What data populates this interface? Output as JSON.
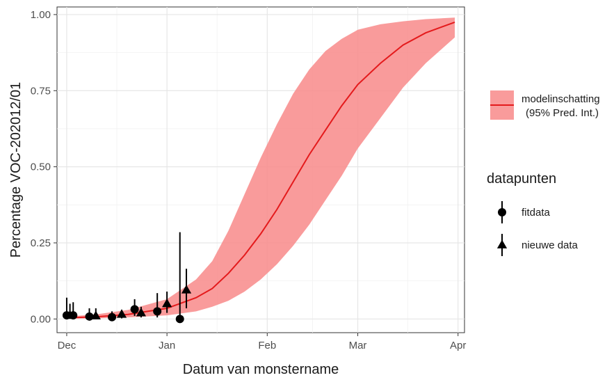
{
  "chart_data": {
    "type": "line",
    "xlabel": "Datum van monstername",
    "ylabel": "Percentage VOC-202012/01",
    "x_axis": {
      "type": "date",
      "range": [
        "2020-11-28",
        "2021-04-03"
      ],
      "ticks": [
        {
          "date": "2020-12-01",
          "label": "Dec"
        },
        {
          "date": "2021-01-01",
          "label": "Jan"
        },
        {
          "date": "2021-02-01",
          "label": "Feb"
        },
        {
          "date": "2021-03-01",
          "label": "Mar"
        },
        {
          "date": "2021-04-01",
          "label": "Apr"
        }
      ]
    },
    "y_axis": {
      "range": [
        -0.045,
        1.025
      ],
      "ticks": [
        0,
        0.25,
        0.5,
        0.75,
        1
      ],
      "tick_labels": [
        "0.00",
        "0.25",
        "0.50",
        "0.75",
        "1.00"
      ]
    },
    "grid": true,
    "model": {
      "label_line1": "modelinschatting",
      "label_line2": "(95% Pred. Int.)",
      "line_color": "#e41a1c",
      "band_color": "#f88a8a",
      "points": [
        {
          "x": "2020-12-01",
          "y": 0.004,
          "lo": 0.001,
          "hi": 0.008
        },
        {
          "x": "2020-12-10",
          "y": 0.007,
          "lo": 0.002,
          "hi": 0.015
        },
        {
          "x": "2020-12-20",
          "y": 0.015,
          "lo": 0.005,
          "hi": 0.03
        },
        {
          "x": "2021-01-01",
          "y": 0.035,
          "lo": 0.012,
          "hi": 0.065
        },
        {
          "x": "2021-01-10",
          "y": 0.07,
          "lo": 0.025,
          "hi": 0.13
        },
        {
          "x": "2021-01-15",
          "y": 0.1,
          "lo": 0.04,
          "hi": 0.19
        },
        {
          "x": "2021-01-20",
          "y": 0.15,
          "lo": 0.06,
          "hi": 0.29
        },
        {
          "x": "2021-01-25",
          "y": 0.21,
          "lo": 0.09,
          "hi": 0.41
        },
        {
          "x": "2021-01-30",
          "y": 0.28,
          "lo": 0.13,
          "hi": 0.53
        },
        {
          "x": "2021-02-04",
          "y": 0.36,
          "lo": 0.18,
          "hi": 0.64
        },
        {
          "x": "2021-02-09",
          "y": 0.45,
          "lo": 0.24,
          "hi": 0.74
        },
        {
          "x": "2021-02-14",
          "y": 0.54,
          "lo": 0.31,
          "hi": 0.82
        },
        {
          "x": "2021-02-19",
          "y": 0.62,
          "lo": 0.39,
          "hi": 0.88
        },
        {
          "x": "2021-02-24",
          "y": 0.7,
          "lo": 0.47,
          "hi": 0.92
        },
        {
          "x": "2021-03-01",
          "y": 0.77,
          "lo": 0.56,
          "hi": 0.95
        },
        {
          "x": "2021-03-08",
          "y": 0.84,
          "lo": 0.66,
          "hi": 0.968
        },
        {
          "x": "2021-03-15",
          "y": 0.9,
          "lo": 0.76,
          "hi": 0.978
        },
        {
          "x": "2021-03-22",
          "y": 0.94,
          "lo": 0.84,
          "hi": 0.985
        },
        {
          "x": "2021-03-31",
          "y": 0.975,
          "lo": 0.925,
          "hi": 0.99
        }
      ]
    },
    "data_legend_title": "datapunten",
    "series": [
      {
        "name": "fitdata",
        "shape": "circle",
        "points": [
          {
            "x": "2020-12-01",
            "y": 0.012,
            "lo": 0.0,
            "hi": 0.07
          },
          {
            "x": "2020-12-03",
            "y": 0.012,
            "lo": 0.0,
            "hi": 0.055
          },
          {
            "x": "2020-12-08",
            "y": 0.008,
            "lo": 0.0,
            "hi": 0.035
          },
          {
            "x": "2020-12-15",
            "y": 0.006,
            "lo": 0.0,
            "hi": 0.025
          },
          {
            "x": "2020-12-22",
            "y": 0.032,
            "lo": 0.01,
            "hi": 0.065
          },
          {
            "x": "2020-12-29",
            "y": 0.025,
            "lo": 0.005,
            "hi": 0.085
          },
          {
            "x": "2021-01-05",
            "y": 0.0,
            "lo": 0.0,
            "hi": 0.285
          }
        ]
      },
      {
        "name": "nieuwe data",
        "shape": "triangle",
        "points": [
          {
            "x": "2020-12-02",
            "y": 0.012,
            "lo": 0.0,
            "hi": 0.05
          },
          {
            "x": "2020-12-10",
            "y": 0.01,
            "lo": 0.0,
            "hi": 0.035
          },
          {
            "x": "2020-12-18",
            "y": 0.015,
            "lo": 0.002,
            "hi": 0.03
          },
          {
            "x": "2020-12-24",
            "y": 0.02,
            "lo": 0.005,
            "hi": 0.04
          },
          {
            "x": "2021-01-01",
            "y": 0.05,
            "lo": 0.02,
            "hi": 0.09
          },
          {
            "x": "2021-01-07",
            "y": 0.095,
            "lo": 0.035,
            "hi": 0.165
          }
        ]
      }
    ]
  }
}
